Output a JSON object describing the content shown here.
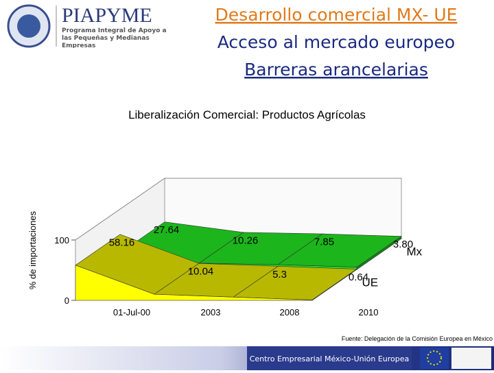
{
  "header": {
    "logo": "PIAPYME",
    "logo_subtitle": "Programa Integral de Apoyo a las Pequeñas y Medianas Empresas",
    "title_lines": [
      "Desarrollo comercial MX- UE",
      "Acceso al mercado europeo",
      "Barreras arancelarias"
    ]
  },
  "chart_data": {
    "type": "area3d",
    "title": "Liberalización Comercial: Productos Agrícolas",
    "y_label": "% de importaciones",
    "categories": [
      "01-Jul-00",
      "2003",
      "2008",
      "2010"
    ],
    "series": [
      {
        "name": "Mx",
        "color": "#22dd22",
        "values": [
          27.64,
          10.26,
          7.85,
          3.8
        ],
        "value_labels": [
          "27.64",
          "10.26",
          "7.85",
          "3.80"
        ]
      },
      {
        "name": "UE",
        "color": "#ffff00",
        "values": [
          58.16,
          10.04,
          5.3,
          0.64
        ]
      }
    ],
    "ylim": [
      0,
      100
    ],
    "yticks": [
      0,
      100
    ],
    "grid": true
  },
  "footer": {
    "source": "Fuente: Delegación de la Comisión Europea en México",
    "center": "Centro Empresarial México-Unión Europea"
  }
}
